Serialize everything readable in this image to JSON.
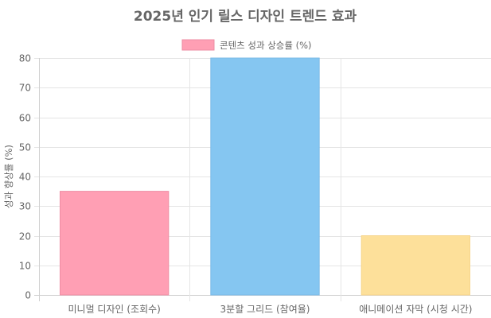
{
  "chart_data": {
    "type": "bar",
    "title": "2025년 인기 릴스 디자인 트렌드 효과",
    "xlabel": "",
    "ylabel": "성과 향상률 (%)",
    "categories": [
      "미니멀 디자인 (조회수)",
      "3분할 그리드 (참여율)",
      "애니메이션 자막 (시청 시간)"
    ],
    "series": [
      {
        "name": "콘텐츠 성과 상승률 (%)",
        "values": [
          35,
          80,
          20
        ],
        "colors": [
          "#ff9fb4",
          "#85c6f1",
          "#fde09a"
        ],
        "border_colors": [
          "#ee8ca3",
          "#7ab9e6",
          "#f6d58c"
        ]
      }
    ],
    "ylim": [
      0,
      80
    ],
    "yticks": [
      0,
      10,
      20,
      30,
      40,
      50,
      60,
      70,
      80
    ],
    "grid": true,
    "legend_position": "top",
    "legend_swatch_color": "#ff9fb4",
    "legend_swatch_border": "#ee8ca3",
    "grid_color": "#e5e5e5",
    "text_color": "#666666"
  }
}
